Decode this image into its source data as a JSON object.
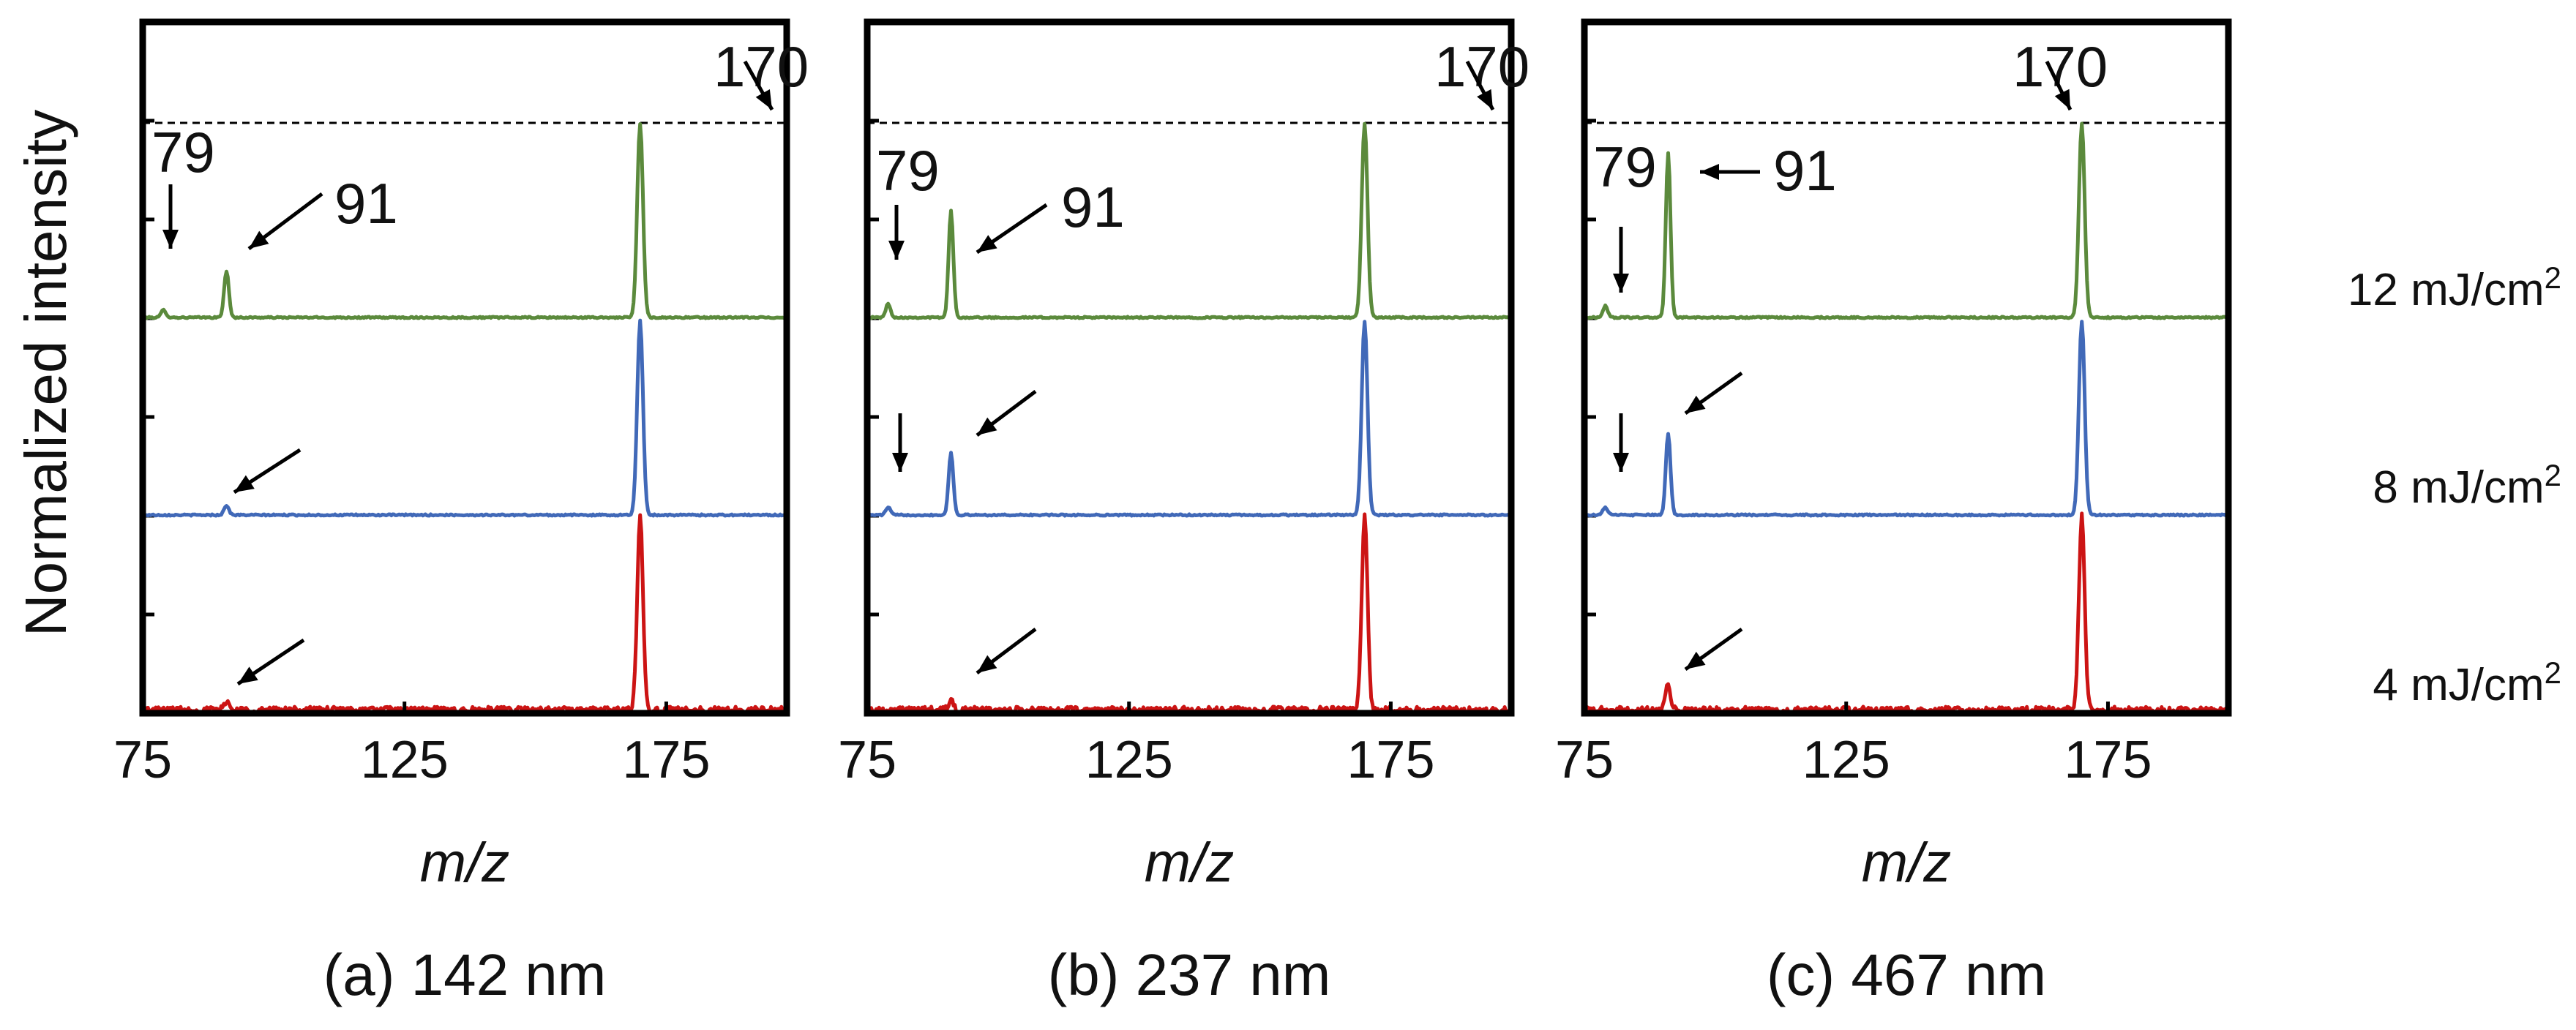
{
  "chart_data": {
    "type": "line",
    "ylabel": "Normalized intensity",
    "xlabel": "m/z",
    "xlim": [
      75,
      198
    ],
    "xticks": [
      75,
      125,
      175
    ],
    "colors": {
      "12 mJ/cm2": "#5b8a3c",
      "8 mJ/cm2": "#4169b8",
      "4 mJ/cm2": "#cc1414"
    },
    "energy_labels": [
      {
        "value": "12 mJ/cm",
        "sup": "2"
      },
      {
        "value": "8 mJ/cm",
        "sup": "2"
      },
      {
        "value": "4 mJ/cm",
        "sup": "2"
      }
    ],
    "panels": [
      {
        "caption": "(a) 142 nm",
        "peak_labels": [
          "170",
          "79",
          "91"
        ],
        "series": [
          {
            "name": "12 mJ/cm2",
            "peaks": [
              {
                "mz": 79,
                "intensity": 0.04
              },
              {
                "mz": 91,
                "intensity": 0.24
              },
              {
                "mz": 170,
                "intensity": 1.0
              }
            ]
          },
          {
            "name": "8 mJ/cm2",
            "peaks": [
              {
                "mz": 91,
                "intensity": 0.05
              },
              {
                "mz": 170,
                "intensity": 1.0
              }
            ]
          },
          {
            "name": "4 mJ/cm2",
            "peaks": [
              {
                "mz": 91,
                "intensity": 0.05
              },
              {
                "mz": 170,
                "intensity": 1.0
              }
            ]
          }
        ]
      },
      {
        "caption": "(b) 237 nm",
        "peak_labels": [
          "170",
          "79",
          "91"
        ],
        "series": [
          {
            "name": "12 mJ/cm2",
            "peaks": [
              {
                "mz": 79,
                "intensity": 0.07
              },
              {
                "mz": 91,
                "intensity": 0.55
              },
              {
                "mz": 170,
                "intensity": 1.0
              }
            ]
          },
          {
            "name": "8 mJ/cm2",
            "peaks": [
              {
                "mz": 79,
                "intensity": 0.04
              },
              {
                "mz": 91,
                "intensity": 0.32
              },
              {
                "mz": 170,
                "intensity": 1.0
              }
            ]
          },
          {
            "name": "4 mJ/cm2",
            "peaks": [
              {
                "mz": 91,
                "intensity": 0.05
              },
              {
                "mz": 170,
                "intensity": 1.0
              }
            ]
          }
        ]
      },
      {
        "caption": "(c) 467 nm",
        "peak_labels": [
          "170",
          "79",
          "91"
        ],
        "series": [
          {
            "name": "12 mJ/cm2",
            "peaks": [
              {
                "mz": 79,
                "intensity": 0.06
              },
              {
                "mz": 91,
                "intensity": 0.85
              },
              {
                "mz": 170,
                "intensity": 1.0
              }
            ]
          },
          {
            "name": "8 mJ/cm2",
            "peaks": [
              {
                "mz": 79,
                "intensity": 0.04
              },
              {
                "mz": 91,
                "intensity": 0.42
              },
              {
                "mz": 170,
                "intensity": 1.0
              }
            ]
          },
          {
            "name": "4 mJ/cm2",
            "peaks": [
              {
                "mz": 91,
                "intensity": 0.14
              },
              {
                "mz": 170,
                "intensity": 1.0
              }
            ]
          }
        ]
      }
    ]
  }
}
